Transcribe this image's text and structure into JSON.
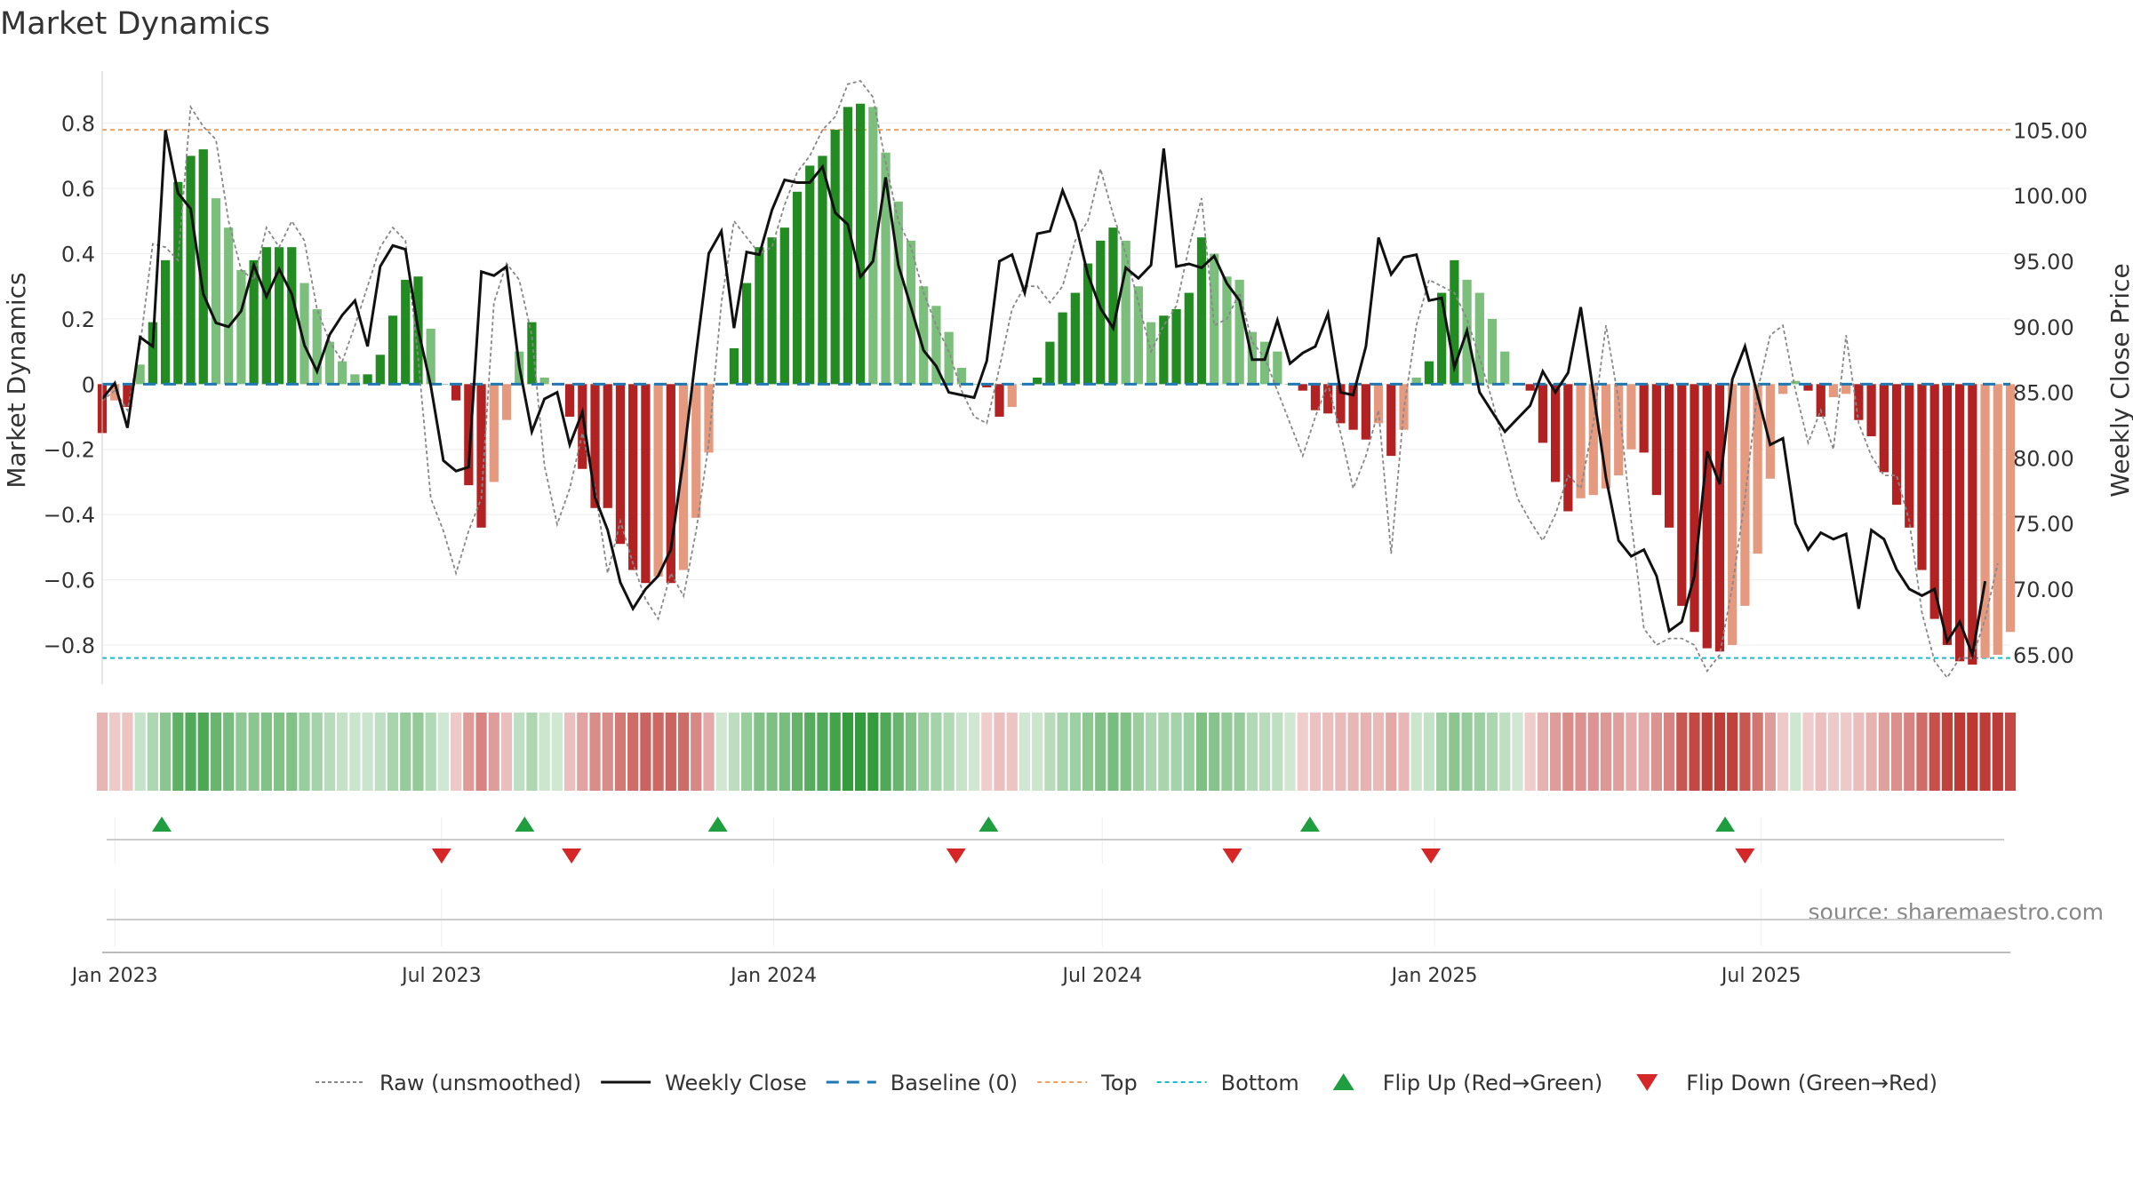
{
  "chart_data": {
    "type": "bar",
    "title": "Market Dynamics",
    "ylabel_left": "Market Dynamics",
    "ylabel_right": "Weekly Close Price",
    "source": "source: sharemaestro.com",
    "ylim_left": [
      -0.92,
      0.96
    ],
    "ylim_right": [
      62.75,
      109.5
    ],
    "yticks_left": [
      0.8,
      0.6,
      0.4,
      0.2,
      0,
      -0.2,
      -0.4,
      -0.6,
      -0.8
    ],
    "yticks_left_labels": [
      "0.8",
      "0.6",
      "0.4",
      "0.2",
      "0",
      "−0.2",
      "−0.4",
      "−0.6",
      "−0.8"
    ],
    "yticks_right": [
      105,
      100,
      95,
      90,
      85,
      80,
      75,
      70,
      65
    ],
    "yticks_right_labels": [
      "105.00",
      "100.00",
      "95.00",
      "90.00",
      "85.00",
      "80.00",
      "75.00",
      "70.00",
      "65.00"
    ],
    "top_line": 0.78,
    "bottom_line": -0.84,
    "start_date": "2022-12-25",
    "interval_days": 7,
    "x_ticks": [
      "2023-01-01",
      "2023-07-01",
      "2024-01-01",
      "2024-07-01",
      "2025-01-01",
      "2025-07-01"
    ],
    "x_tick_labels": [
      "Jan 2023",
      "Jul 2023",
      "Jan 2024",
      "Jul 2024",
      "Jan 2025",
      "Jul 2025"
    ],
    "grid": true,
    "legend_position": "bottom-center",
    "colors": {
      "strong_green": "#228b22",
      "light_green": "#7cbf7c",
      "strong_red": "#b22222",
      "light_red": "#e59a80",
      "raw_line": "#888888",
      "close_line": "#111111",
      "baseline": "#1f77b4",
      "top": "#f0a060",
      "bottom": "#17becf",
      "flip_up": "#1e9e3e",
      "flip_down": "#d62728"
    },
    "series": [
      {
        "name": "Market Dynamics",
        "values": [
          -0.15,
          -0.05,
          -0.07,
          0.06,
          0.19,
          0.38,
          0.62,
          0.7,
          0.72,
          0.57,
          0.48,
          0.35,
          0.38,
          0.42,
          0.42,
          0.42,
          0.31,
          0.23,
          0.13,
          0.07,
          0.03,
          0.03,
          0.09,
          0.21,
          0.32,
          0.33,
          0.17,
          0.0,
          -0.05,
          -0.31,
          -0.44,
          -0.3,
          -0.11,
          0.1,
          0.19,
          0.02,
          0.0,
          -0.1,
          -0.26,
          -0.38,
          -0.38,
          -0.49,
          -0.57,
          -0.61,
          -0.59,
          -0.61,
          -0.57,
          -0.41,
          -0.21,
          0.0,
          0.11,
          0.31,
          0.42,
          0.45,
          0.48,
          0.59,
          0.67,
          0.7,
          0.78,
          0.85,
          0.86,
          0.85,
          0.71,
          0.56,
          0.44,
          0.3,
          0.24,
          0.16,
          0.05,
          0.0,
          -0.01,
          -0.1,
          -0.07,
          0.0,
          0.02,
          0.13,
          0.22,
          0.28,
          0.37,
          0.44,
          0.48,
          0.44,
          0.3,
          0.19,
          0.21,
          0.23,
          0.28,
          0.45,
          0.4,
          0.33,
          0.32,
          0.16,
          0.13,
          0.1,
          0.0,
          -0.02,
          -0.08,
          -0.09,
          -0.12,
          -0.14,
          -0.17,
          -0.12,
          -0.22,
          -0.14,
          0.02,
          0.07,
          0.28,
          0.38,
          0.32,
          0.28,
          0.2,
          0.1,
          0.0,
          -0.02,
          -0.18,
          -0.3,
          -0.39,
          -0.35,
          -0.34,
          -0.32,
          -0.28,
          -0.2,
          -0.21,
          -0.34,
          -0.44,
          -0.68,
          -0.76,
          -0.81,
          -0.82,
          -0.8,
          -0.68,
          -0.52,
          -0.29,
          -0.03,
          0.01,
          -0.02,
          -0.1,
          -0.04,
          -0.03,
          -0.11,
          -0.16,
          -0.27,
          -0.37,
          -0.44,
          -0.57,
          -0.72,
          -0.8,
          -0.85,
          -0.86,
          -0.84,
          -0.83,
          -0.76
        ]
      },
      {
        "name": "Raw (unsmoothed)",
        "values": [
          -0.05,
          -0.02,
          -0.08,
          0.12,
          0.43,
          0.42,
          0.38,
          0.85,
          0.79,
          0.75,
          0.5,
          0.35,
          0.32,
          0.48,
          0.42,
          0.5,
          0.44,
          0.23,
          0.13,
          0.07,
          0.18,
          0.3,
          0.42,
          0.48,
          0.44,
          0.08,
          -0.35,
          -0.45,
          -0.58,
          -0.45,
          -0.35,
          0.25,
          0.37,
          0.32,
          0.15,
          -0.25,
          -0.43,
          -0.32,
          -0.15,
          -0.32,
          -0.58,
          -0.42,
          -0.55,
          -0.66,
          -0.72,
          -0.58,
          -0.65,
          -0.45,
          -0.18,
          0.25,
          0.5,
          0.45,
          0.4,
          0.42,
          0.55,
          0.65,
          0.7,
          0.78,
          0.82,
          0.92,
          0.93,
          0.88,
          0.68,
          0.5,
          0.42,
          0.28,
          0.18,
          0.1,
          -0.02,
          -0.1,
          -0.12,
          0.05,
          0.23,
          0.3,
          0.3,
          0.25,
          0.3,
          0.44,
          0.5,
          0.66,
          0.52,
          0.4,
          0.25,
          0.1,
          0.18,
          0.24,
          0.42,
          0.57,
          0.18,
          0.2,
          0.28,
          0.13,
          0.08,
          -0.02,
          -0.12,
          -0.22,
          -0.1,
          0.0,
          -0.15,
          -0.32,
          -0.22,
          -0.08,
          -0.52,
          -0.08,
          0.18,
          0.32,
          0.3,
          0.28,
          0.2,
          0.08,
          -0.05,
          -0.2,
          -0.35,
          -0.42,
          -0.48,
          -0.4,
          -0.28,
          -0.32,
          -0.12,
          0.18,
          -0.05,
          -0.42,
          -0.75,
          -0.8,
          -0.78,
          -0.78,
          -0.8,
          -0.88,
          -0.83,
          -0.62,
          -0.35,
          -0.02,
          0.15,
          0.18,
          -0.02,
          -0.18,
          -0.08,
          -0.2,
          0.15,
          -0.12,
          -0.22,
          -0.28,
          -0.28,
          -0.42,
          -0.7,
          -0.85,
          -0.9,
          -0.84,
          -0.84,
          -0.72,
          -0.55
        ]
      },
      {
        "name": "Weekly Close",
        "values": [
          84.5,
          85.7,
          82.3,
          89.2,
          88.5,
          105.0,
          100.2,
          99.0,
          92.5,
          90.3,
          90.0,
          91.2,
          94.7,
          92.3,
          94.4,
          92.5,
          88.6,
          86.6,
          89.4,
          90.9,
          92.0,
          88.5,
          94.6,
          96.2,
          95.9,
          89.8,
          85.5,
          79.8,
          79.0,
          79.3,
          94.2,
          93.9,
          94.6,
          87.0,
          82.0,
          84.5,
          85.0,
          81.0,
          83.5,
          77.0,
          74.5,
          70.5,
          68.5,
          70.0,
          71.0,
          73.0,
          80.0,
          88.0,
          95.6,
          97.3,
          89.9,
          95.7,
          95.5,
          98.9,
          101.2,
          101.0,
          101.0,
          102.2,
          98.7,
          97.8,
          93.8,
          95.0,
          101.4,
          94.7,
          91.5,
          88.2,
          87.0,
          85.0,
          84.8,
          84.6,
          87.4,
          95.0,
          95.5,
          92.6,
          97.1,
          97.3,
          100.4,
          98.0,
          94.0,
          91.4,
          89.9,
          94.5,
          93.7,
          94.7,
          103.6,
          94.6,
          94.8,
          94.5,
          95.4,
          93.3,
          92.0,
          87.5,
          87.5,
          90.5,
          87.2,
          88.0,
          88.5,
          91.0,
          85.0,
          84.8,
          88.5,
          96.8,
          94.0,
          95.3,
          95.5,
          92.0,
          92.2,
          86.9,
          89.7,
          85.0,
          83.5,
          82.0,
          83.0,
          84.0,
          86.6,
          85.0,
          86.5,
          91.5,
          85.0,
          78.5,
          73.7,
          72.5,
          73.0,
          71.0,
          66.8,
          67.5,
          71.0,
          80.5,
          78.0,
          86.0,
          88.5,
          84.8,
          81.0,
          81.5,
          75.0,
          73.0,
          74.3,
          73.8,
          74.2,
          68.5,
          74.5,
          73.8,
          71.5,
          70.0,
          69.5,
          70.0,
          66.0,
          67.5,
          65.0,
          70.6
        ]
      }
    ],
    "flip_up_dates": [
      "2023-01-27",
      "2023-08-16",
      "2023-12-01",
      "2024-04-29",
      "2024-10-24",
      "2025-06-11"
    ],
    "flip_down_dates": [
      "2023-07-01",
      "2023-09-11",
      "2024-04-11",
      "2024-09-11",
      "2024-12-30",
      "2025-06-22"
    ],
    "legend": [
      {
        "key": "raw",
        "label": "Raw (unsmoothed)"
      },
      {
        "key": "close",
        "label": "Weekly Close"
      },
      {
        "key": "baseline",
        "label": "Baseline (0)"
      },
      {
        "key": "top",
        "label": "Top"
      },
      {
        "key": "bottom",
        "label": "Bottom"
      },
      {
        "key": "flip_up",
        "label": "Flip Up (Red→Green)"
      },
      {
        "key": "flip_down",
        "label": "Flip Down (Green→Red)"
      }
    ]
  }
}
